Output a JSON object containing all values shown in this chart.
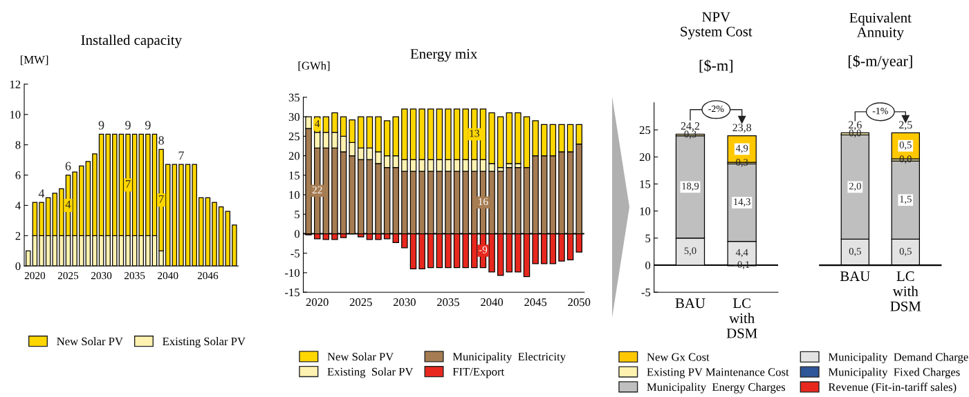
{
  "chart_data": [
    {
      "type": "bar",
      "title": "Installed capacity",
      "ylabel": "[MW]",
      "stacked": true,
      "legend": "bottom",
      "grid": false,
      "categories": [
        null,
        "2020",
        null,
        null,
        null,
        null,
        "2025",
        null,
        null,
        null,
        null,
        "2030",
        null,
        null,
        null,
        null,
        "2035",
        null,
        null,
        null,
        null,
        "2040",
        null,
        null,
        null,
        null,
        null,
        "2046",
        null,
        null,
        null,
        null
      ],
      "ylim": [
        0,
        12
      ],
      "yticks": [
        0,
        2,
        4,
        6,
        8,
        10,
        12
      ],
      "series": [
        {
          "name": "Existing Solar PV",
          "color": "#fff2b0",
          "values": [
            1,
            2,
            2,
            2,
            2,
            2,
            2,
            2,
            2,
            2,
            2,
            2,
            2,
            2,
            2,
            2,
            2,
            2,
            2,
            2,
            1,
            0,
            0,
            0,
            0,
            0,
            0,
            0,
            0,
            0,
            0,
            0
          ]
        },
        {
          "name": "New Solar PV",
          "color": "#ffd700",
          "values": [
            0,
            2.2,
            2.2,
            2.5,
            2.8,
            3.1,
            4.0,
            4.2,
            4.6,
            4.9,
            5.4,
            6.7,
            6.7,
            6.7,
            6.7,
            6.7,
            6.7,
            6.7,
            6.7,
            6.7,
            6.7,
            6.7,
            6.7,
            6.7,
            6.7,
            6.7,
            4.5,
            4.5,
            4.2,
            3.9,
            3.6,
            2.7
          ],
          "value_labels": [
            null,
            null,
            null,
            null,
            null,
            null,
            "4",
            null,
            null,
            null,
            null,
            null,
            null,
            null,
            null,
            "7",
            null,
            null,
            null,
            null,
            "7",
            null,
            null,
            null,
            null,
            null,
            null,
            null,
            null,
            null,
            null,
            null
          ]
        }
      ],
      "totals": [
        null,
        null,
        "4",
        null,
        null,
        null,
        "6",
        null,
        null,
        null,
        null,
        "9",
        null,
        null,
        null,
        "9",
        null,
        null,
        "9",
        null,
        "8",
        null,
        null,
        "7",
        null,
        null,
        null,
        null,
        null,
        null,
        null,
        null
      ]
    },
    {
      "type": "bar",
      "title": "Energy mix",
      "ylabel": "[GWh]",
      "stacked": true,
      "legend": "bottom",
      "grid": false,
      "categories": [
        null,
        "2020",
        null,
        null,
        null,
        null,
        "2025",
        null,
        null,
        null,
        null,
        "2030",
        null,
        null,
        null,
        null,
        "2035",
        null,
        null,
        null,
        null,
        "2040",
        null,
        null,
        null,
        null,
        "2045",
        null,
        null,
        null,
        null,
        "2050"
      ],
      "ylim": [
        -15,
        35
      ],
      "yticks": [
        -15,
        -10,
        -5,
        0,
        5,
        10,
        15,
        20,
        25,
        30,
        35
      ],
      "ref_lines": [
        {
          "axis": "y",
          "value": 0,
          "color": "#000000"
        }
      ],
      "series": [
        {
          "name": "Municipality  Electricity",
          "color": "#a67c52",
          "values": [
            27,
            22,
            22,
            22,
            21,
            20,
            19,
            19,
            18,
            17,
            17,
            16,
            16,
            16,
            16,
            16,
            16,
            16,
            16,
            16,
            16,
            16,
            16,
            17,
            17,
            17,
            20,
            20,
            20,
            21,
            21,
            23
          ],
          "value_labels": [
            null,
            "22",
            null,
            null,
            null,
            null,
            null,
            null,
            null,
            null,
            null,
            null,
            null,
            null,
            null,
            null,
            null,
            null,
            null,
            null,
            "16",
            null,
            null,
            null,
            null,
            null,
            null,
            null,
            null,
            null,
            null,
            null
          ]
        },
        {
          "name": "Existing  Solar PV",
          "color": "#fff2b0",
          "values": [
            3,
            4,
            4,
            4,
            4,
            3.4,
            3,
            3,
            3,
            3,
            3,
            3,
            3,
            3,
            3,
            3,
            3,
            3,
            3,
            3,
            3,
            2,
            1,
            1,
            1,
            0,
            0,
            0,
            0,
            0,
            0,
            0
          ]
        },
        {
          "name": "New Solar PV",
          "color": "#ffd700",
          "values": [
            0,
            4,
            4,
            5,
            5,
            5.8,
            8,
            8,
            9,
            9,
            10,
            13,
            13,
            13,
            13,
            13,
            13,
            13,
            13,
            13,
            13,
            13,
            13,
            13,
            13,
            13,
            9,
            8,
            8,
            7,
            7,
            5
          ],
          "value_labels": [
            null,
            "4",
            null,
            null,
            null,
            null,
            null,
            null,
            null,
            null,
            null,
            null,
            null,
            null,
            null,
            null,
            null,
            null,
            null,
            "13",
            null,
            null,
            null,
            null,
            null,
            null,
            null,
            null,
            null,
            null,
            null,
            null
          ]
        },
        {
          "name": "FIT/Export",
          "color": "#e8281e",
          "values": [
            -0.3,
            -1.3,
            -1.5,
            -1.5,
            -1.0,
            0,
            -0.8,
            -1.5,
            -1.5,
            -1.3,
            -2.3,
            -3.6,
            -9.0,
            -9.0,
            -8.7,
            -8.7,
            -8.7,
            -8.7,
            -8.7,
            -8.7,
            -8.7,
            -9.8,
            -10.7,
            -9.8,
            -9.8,
            -11.0,
            -7.7,
            -7.7,
            -7.7,
            -7.0,
            -6.7,
            -4.7
          ],
          "value_labels": [
            null,
            null,
            null,
            null,
            null,
            null,
            null,
            null,
            null,
            null,
            null,
            null,
            null,
            null,
            null,
            null,
            null,
            null,
            null,
            null,
            "-9",
            null,
            null,
            null,
            null,
            null,
            null,
            null,
            null,
            null,
            null,
            null
          ]
        }
      ]
    },
    {
      "type": "bar",
      "title": "NPV\nSystem Cost",
      "subtitle": "[$-m]",
      "stacked": true,
      "legend": "bottom",
      "grid": false,
      "categories": [
        "BAU",
        "LC\nwith\nDSM"
      ],
      "ylim": [
        -5,
        30
      ],
      "yticks": [
        -5,
        0,
        5,
        10,
        15,
        20,
        25
      ],
      "ref_lines": [
        {
          "axis": "y",
          "value": 0,
          "color": "#000000"
        }
      ],
      "annotations": [
        "-2%"
      ],
      "series": [
        {
          "name": "Municipality  Fixed Charges",
          "color": "#2e5597",
          "values": [
            0,
            0
          ]
        },
        {
          "name": "Municipality  Demand Charge",
          "color": "#e3e3e3",
          "values": [
            5.0,
            4.4
          ],
          "value_labels": [
            "5,0",
            "4,4"
          ]
        },
        {
          "name": "Municipality  Energy Charges",
          "color": "#bfbfbf",
          "values": [
            18.9,
            14.3
          ],
          "value_labels": [
            "18,9",
            "14,3"
          ]
        },
        {
          "name": "Existing PV Maintenance Cost",
          "color": "#fff2b0",
          "values": [
            0.3,
            0.3
          ],
          "value_labels": [
            "0,3",
            "0,3"
          ]
        },
        {
          "name": "New Gx Cost",
          "color": "#ffc800",
          "values": [
            0,
            4.9
          ],
          "value_labels": [
            null,
            "4,9"
          ]
        },
        {
          "name": "Revenue (Fit-in-tariff sales)",
          "color": "#e8281e",
          "values": [
            0,
            -0.1
          ],
          "value_labels": [
            null,
            "-0,1"
          ]
        }
      ],
      "totals": [
        "24,2",
        "23,8"
      ]
    },
    {
      "type": "bar",
      "title": "Equivalent\nAnnuity",
      "subtitle": "[$-m/year]",
      "stacked": true,
      "grid": false,
      "tick_labels": "x",
      "categories": [
        "BAU",
        "LC\nwith\nDSM"
      ],
      "annotations": [
        "-1%"
      ],
      "series": [
        {
          "color": "#e3e3e3",
          "values": [
            0.5,
            0.5
          ],
          "value_labels": [
            "0,5",
            "0,5"
          ]
        },
        {
          "color": "#bfbfbf",
          "values": [
            2.0,
            1.5
          ],
          "value_labels": [
            "2,0",
            "1,5"
          ]
        },
        {
          "color": "#fff2b0",
          "values": [
            0.04,
            0.04
          ],
          "value_labels": [
            "0,0",
            "0,0"
          ]
        },
        {
          "color": "#ffc800",
          "values": [
            0,
            0.5
          ],
          "value_labels": [
            null,
            "0,5"
          ]
        }
      ],
      "totals": [
        "2,6",
        "2,5"
      ]
    }
  ]
}
